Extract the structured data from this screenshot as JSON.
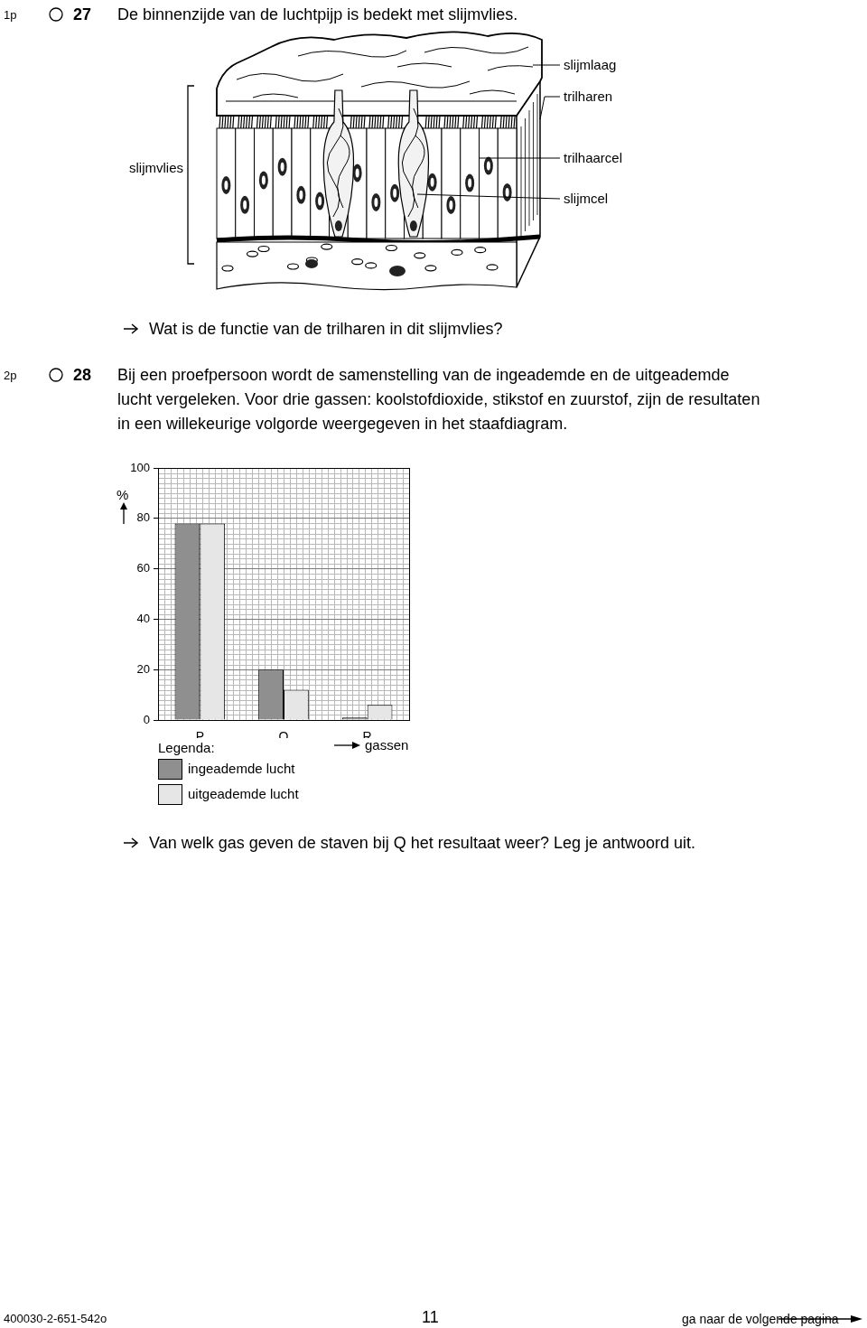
{
  "questions": [
    {
      "points": "1p",
      "number": "27",
      "text_lines": [
        "De binnenzijde van de luchtpijp is bedekt met slijmvlies."
      ],
      "prompt": "Wat is de functie van de trilharen in dit slijmvlies?"
    },
    {
      "points": "2p",
      "number": "28",
      "text_lines": [
        "Bij een proefpersoon wordt de samenstelling van de ingeademde en de uitgeademde",
        "lucht vergeleken. Voor drie gassen: koolstofdioxide, stikstof en zuurstof, zijn de resultaten",
        "in een willekeurige volgorde weergegeven in het staafdiagram."
      ],
      "prompt": "Van welk gas geven de staven bij Q het resultaat weer? Leg je antwoord uit."
    }
  ],
  "diagram": {
    "bracket_label": "slijmvlies",
    "labels": [
      "slijmlaag",
      "trilharen",
      "trilhaarcel",
      "slijmcel"
    ]
  },
  "chart_data": {
    "type": "bar",
    "categories": [
      "P",
      "Q",
      "R"
    ],
    "series": [
      {
        "name": "ingeademde lucht",
        "color": "#8f8f8f",
        "values": [
          78,
          20,
          1
        ]
      },
      {
        "name": "uitgeademde lucht",
        "color": "#e6e6e6",
        "values": [
          78,
          12,
          6
        ]
      }
    ],
    "y_label": "%",
    "x_label": "gassen",
    "legend_title": "Legenda:",
    "ylim": [
      0,
      100
    ],
    "yticks": [
      0,
      20,
      40,
      60,
      80,
      100
    ],
    "grid": true,
    "legend": "bottom"
  },
  "footer": {
    "code": "400030-2-651-542o",
    "page": "11",
    "next": "ga naar de volgende pagina"
  }
}
